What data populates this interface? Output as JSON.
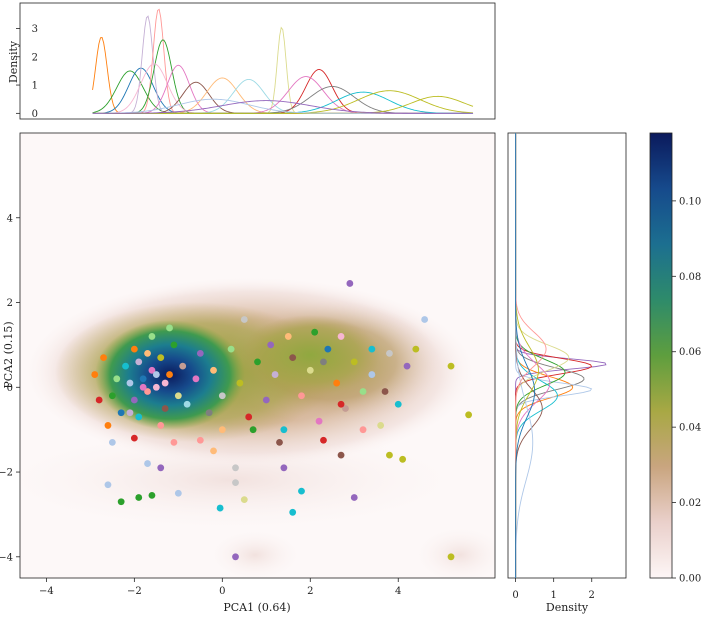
{
  "chart_data": {
    "type": "scatter",
    "subtype": "joint-plot-kde",
    "main": {
      "xlabel": "PCA1 (0.64)",
      "ylabel": "PCA2 (0.15)",
      "xlim": [
        -4.6,
        6.2
      ],
      "ylim": [
        -4.5,
        6.0
      ],
      "xticks": [
        -4,
        -2,
        0,
        2,
        4
      ],
      "yticks": [
        -4,
        -2,
        0,
        2,
        4
      ],
      "kde_colormap": "gist_earth_r",
      "points": [
        {
          "x": -2.9,
          "y": 0.3,
          "c": "#ff7f0e"
        },
        {
          "x": -2.8,
          "y": -0.3,
          "c": "#d62728"
        },
        {
          "x": -2.7,
          "y": 0.7,
          "c": "#ff7f0e"
        },
        {
          "x": -2.6,
          "y": -0.9,
          "c": "#ff7f0e"
        },
        {
          "x": -2.5,
          "y": -0.2,
          "c": "#2ca02c"
        },
        {
          "x": -2.4,
          "y": 0.2,
          "c": "#98df8a"
        },
        {
          "x": -2.3,
          "y": -0.6,
          "c": "#1f77b4"
        },
        {
          "x": -2.2,
          "y": 0.5,
          "c": "#17becf"
        },
        {
          "x": -2.1,
          "y": 0.1,
          "c": "#aec7e8"
        },
        {
          "x": -2.0,
          "y": -0.3,
          "c": "#9467bd"
        },
        {
          "x": -1.9,
          "y": 0.6,
          "c": "#c5b0d5"
        },
        {
          "x": -1.8,
          "y": 0.2,
          "c": "#1f77b4"
        },
        {
          "x": -1.7,
          "y": -0.1,
          "c": "#ff9896"
        },
        {
          "x": -1.6,
          "y": 0.4,
          "c": "#e377c2"
        },
        {
          "x": -1.5,
          "y": 0.0,
          "c": "#f7b6d2"
        },
        {
          "x": -1.4,
          "y": 0.7,
          "c": "#bcbd22"
        },
        {
          "x": -1.3,
          "y": -0.5,
          "c": "#8c564b"
        },
        {
          "x": -1.2,
          "y": 0.3,
          "c": "#ff7f0e"
        },
        {
          "x": -1.1,
          "y": 1.0,
          "c": "#2ca02c"
        },
        {
          "x": -1.0,
          "y": -0.2,
          "c": "#dbdb8d"
        },
        {
          "x": -1.9,
          "y": -0.7,
          "c": "#17becf"
        },
        {
          "x": -1.6,
          "y": 1.2,
          "c": "#98df8a"
        },
        {
          "x": -2.0,
          "y": 0.9,
          "c": "#ff7f0e"
        },
        {
          "x": -1.4,
          "y": -0.9,
          "c": "#ff9896"
        },
        {
          "x": -0.9,
          "y": 0.5,
          "c": "#c49c94"
        },
        {
          "x": -0.8,
          "y": -0.4,
          "c": "#9edae5"
        },
        {
          "x": -0.6,
          "y": 0.2,
          "c": "#e377c2"
        },
        {
          "x": -0.5,
          "y": 0.8,
          "c": "#9467bd"
        },
        {
          "x": -0.3,
          "y": -0.6,
          "c": "#7f7f7f"
        },
        {
          "x": -0.2,
          "y": 0.4,
          "c": "#ffbb78"
        },
        {
          "x": 0.0,
          "y": -0.2,
          "c": "#c7c7c7"
        },
        {
          "x": 0.2,
          "y": 0.9,
          "c": "#98df8a"
        },
        {
          "x": 0.4,
          "y": 0.1,
          "c": "#bcbd22"
        },
        {
          "x": 0.6,
          "y": -0.7,
          "c": "#d62728"
        },
        {
          "x": 0.8,
          "y": 0.6,
          "c": "#2ca02c"
        },
        {
          "x": 1.0,
          "y": -0.3,
          "c": "#9467bd"
        },
        {
          "x": 1.2,
          "y": 0.3,
          "c": "#c5b0d5"
        },
        {
          "x": 1.4,
          "y": -1.0,
          "c": "#17becf"
        },
        {
          "x": 1.6,
          "y": 0.7,
          "c": "#8c564b"
        },
        {
          "x": 1.8,
          "y": -0.2,
          "c": "#ff9896"
        },
        {
          "x": 2.0,
          "y": 0.4,
          "c": "#dbdb8d"
        },
        {
          "x": 2.2,
          "y": -0.8,
          "c": "#e377c2"
        },
        {
          "x": 2.4,
          "y": 0.9,
          "c": "#1f77b4"
        },
        {
          "x": 2.6,
          "y": 0.1,
          "c": "#ff7f0e"
        },
        {
          "x": 2.8,
          "y": -0.5,
          "c": "#c49c94"
        },
        {
          "x": 3.0,
          "y": 0.6,
          "c": "#bcbd22"
        },
        {
          "x": 3.2,
          "y": -0.1,
          "c": "#98df8a"
        },
        {
          "x": 3.4,
          "y": 0.3,
          "c": "#aec7e8"
        },
        {
          "x": 3.6,
          "y": -0.9,
          "c": "#dbdb8d"
        },
        {
          "x": 3.8,
          "y": 0.8,
          "c": "#c7c7c7"
        },
        {
          "x": 4.0,
          "y": -0.4,
          "c": "#17becf"
        },
        {
          "x": 4.2,
          "y": 0.5,
          "c": "#9467bd"
        },
        {
          "x": 4.4,
          "y": 0.9,
          "c": "#bcbd22"
        },
        {
          "x": 4.6,
          "y": 1.6,
          "c": "#aec7e8"
        },
        {
          "x": 5.2,
          "y": 0.5,
          "c": "#bcbd22"
        },
        {
          "x": 5.6,
          "y": -0.65,
          "c": "#bcbd22"
        },
        {
          "x": 2.9,
          "y": 2.45,
          "c": "#9467bd"
        },
        {
          "x": 3.0,
          "y": -2.6,
          "c": "#9467bd"
        },
        {
          "x": 0.3,
          "y": -4.0,
          "c": "#9467bd"
        },
        {
          "x": 5.2,
          "y": -4.0,
          "c": "#bcbd22"
        },
        {
          "x": -2.3,
          "y": -2.7,
          "c": "#2ca02c"
        },
        {
          "x": -1.9,
          "y": -2.6,
          "c": "#2ca02c"
        },
        {
          "x": -1.6,
          "y": -2.55,
          "c": "#2ca02c"
        },
        {
          "x": -1.0,
          "y": -2.5,
          "c": "#aec7e8"
        },
        {
          "x": -0.05,
          "y": -2.85,
          "c": "#17becf"
        },
        {
          "x": 0.5,
          "y": -2.65,
          "c": "#dbdb8d"
        },
        {
          "x": -2.6,
          "y": -2.3,
          "c": "#aec7e8"
        },
        {
          "x": 1.6,
          "y": -2.95,
          "c": "#17becf"
        },
        {
          "x": 1.8,
          "y": -2.45,
          "c": "#17becf"
        },
        {
          "x": 0.3,
          "y": -2.25,
          "c": "#c7c7c7"
        },
        {
          "x": -2.5,
          "y": -1.3,
          "c": "#aec7e8"
        },
        {
          "x": -1.7,
          "y": -1.8,
          "c": "#aec7e8"
        },
        {
          "x": -1.4,
          "y": -1.9,
          "c": "#9467bd"
        },
        {
          "x": -0.2,
          "y": -1.5,
          "c": "#ffbb78"
        },
        {
          "x": 0.3,
          "y": -1.9,
          "c": "#c7c7c7"
        },
        {
          "x": 1.4,
          "y": -1.9,
          "c": "#9467bd"
        },
        {
          "x": 3.8,
          "y": -1.6,
          "c": "#bcbd22"
        },
        {
          "x": 4.1,
          "y": -1.7,
          "c": "#bcbd22"
        },
        {
          "x": 2.7,
          "y": -1.6,
          "c": "#8c564b"
        },
        {
          "x": 1.3,
          "y": -1.3,
          "c": "#8c564b"
        },
        {
          "x": 0.7,
          "y": -1.0,
          "c": "#2ca02c"
        },
        {
          "x": 3.2,
          "y": -1.0,
          "c": "#ff9896"
        },
        {
          "x": 2.1,
          "y": 1.3,
          "c": "#2ca02c"
        },
        {
          "x": 2.7,
          "y": 1.2,
          "c": "#f7b6d2"
        },
        {
          "x": 3.4,
          "y": 0.9,
          "c": "#17becf"
        },
        {
          "x": 1.5,
          "y": 1.2,
          "c": "#ffbb78"
        },
        {
          "x": 0.5,
          "y": 1.6,
          "c": "#c7c7c7"
        },
        {
          "x": -1.2,
          "y": 1.4,
          "c": "#98df8a"
        },
        {
          "x": -2.0,
          "y": -1.2,
          "c": "#d62728"
        },
        {
          "x": -1.1,
          "y": -1.3,
          "c": "#ff9896"
        },
        {
          "x": -0.5,
          "y": -1.25,
          "c": "#ff9896"
        },
        {
          "x": 0.0,
          "y": -1.0,
          "c": "#ffbb78"
        },
        {
          "x": 2.3,
          "y": -1.25,
          "c": "#d62728"
        },
        {
          "x": 2.7,
          "y": -0.4,
          "c": "#d62728"
        },
        {
          "x": 3.7,
          "y": -0.1,
          "c": "#8c564b"
        },
        {
          "x": 1.1,
          "y": 1.0,
          "c": "#9467bd"
        },
        {
          "x": 2.3,
          "y": 0.6,
          "c": "#7f7f7f"
        },
        {
          "x": -1.5,
          "y": 0.3,
          "c": "#aec7e8"
        },
        {
          "x": -1.8,
          "y": 0.0,
          "c": "#e377c2"
        },
        {
          "x": -1.3,
          "y": 0.1,
          "c": "#f7b6d2"
        },
        {
          "x": -2.1,
          "y": -0.6,
          "c": "#c5b0d5"
        },
        {
          "x": -1.7,
          "y": 0.8,
          "c": "#ffbb78"
        }
      ]
    },
    "top_marginal": {
      "ylabel": "Density",
      "yticks": [
        0,
        1,
        2,
        3
      ],
      "ylim": [
        -0.2,
        3.9
      ],
      "curves": [
        {
          "mu": -2.75,
          "sigma": 0.13,
          "amp": 2.7,
          "color": "#ff7f0e"
        },
        {
          "mu": -2.1,
          "sigma": 0.3,
          "amp": 1.5,
          "color": "#2ca02c"
        },
        {
          "mu": -1.85,
          "sigma": 0.28,
          "amp": 1.6,
          "color": "#1f77b4"
        },
        {
          "mu": -1.7,
          "sigma": 0.12,
          "amp": 3.45,
          "color": "#c5b0d5"
        },
        {
          "mu": -1.45,
          "sigma": 0.12,
          "amp": 3.7,
          "color": "#ff9896"
        },
        {
          "mu": -1.35,
          "sigma": 0.2,
          "amp": 2.6,
          "color": "#2ca02c"
        },
        {
          "mu": -1.55,
          "sigma": 0.3,
          "amp": 1.75,
          "color": "#f7b6d2"
        },
        {
          "mu": -1.0,
          "sigma": 0.25,
          "amp": 1.7,
          "color": "#e377c2"
        },
        {
          "mu": -0.6,
          "sigma": 0.3,
          "amp": 1.1,
          "color": "#8c564b"
        },
        {
          "mu": 0.0,
          "sigma": 0.35,
          "amp": 1.25,
          "color": "#ffbb78"
        },
        {
          "mu": 0.6,
          "sigma": 0.35,
          "amp": 1.2,
          "color": "#9edae5"
        },
        {
          "mu": 1.35,
          "sigma": 0.1,
          "amp": 3.05,
          "color": "#dbdb8d"
        },
        {
          "mu": 2.2,
          "sigma": 0.3,
          "amp": 1.55,
          "color": "#d62728"
        },
        {
          "mu": 1.9,
          "sigma": 0.4,
          "amp": 1.3,
          "color": "#e377c2"
        },
        {
          "mu": 2.5,
          "sigma": 0.5,
          "amp": 0.95,
          "color": "#7f7f7f"
        },
        {
          "mu": 3.2,
          "sigma": 0.6,
          "amp": 0.75,
          "color": "#17becf"
        },
        {
          "mu": 3.8,
          "sigma": 0.7,
          "amp": 0.8,
          "color": "#bcbd22"
        },
        {
          "mu": 4.9,
          "sigma": 0.6,
          "amp": 0.6,
          "color": "#bcbd22"
        },
        {
          "mu": -0.2,
          "sigma": 0.8,
          "amp": 0.5,
          "color": "#aec7e8"
        },
        {
          "mu": 1.0,
          "sigma": 1.0,
          "amp": 0.45,
          "color": "#9467bd"
        }
      ]
    },
    "right_marginal": {
      "xlabel": "Density",
      "xticks": [
        0,
        1,
        2
      ],
      "xlim": [
        -0.2,
        2.9
      ],
      "curves": [
        {
          "mu": 0.55,
          "sigma": 0.12,
          "amp": 2.4,
          "color": "#9467bd"
        },
        {
          "mu": 0.5,
          "sigma": 0.18,
          "amp": 2.0,
          "color": "#d62728"
        },
        {
          "mu": 0.2,
          "sigma": 0.25,
          "amp": 1.8,
          "color": "#7f7f7f"
        },
        {
          "mu": 0.0,
          "sigma": 0.25,
          "amp": 1.5,
          "color": "#ff7f0e"
        },
        {
          "mu": -0.05,
          "sigma": 0.15,
          "amp": 2.0,
          "color": "#aec7e8"
        },
        {
          "mu": 0.35,
          "sigma": 0.3,
          "amp": 1.3,
          "color": "#2ca02c"
        },
        {
          "mu": -0.2,
          "sigma": 0.35,
          "amp": 1.1,
          "color": "#17becf"
        },
        {
          "mu": 0.7,
          "sigma": 0.3,
          "amp": 1.4,
          "color": "#dbdb8d"
        },
        {
          "mu": 0.1,
          "sigma": 0.45,
          "amp": 0.9,
          "color": "#e377c2"
        },
        {
          "mu": -0.5,
          "sigma": 0.45,
          "amp": 0.7,
          "color": "#8c564b"
        },
        {
          "mu": 0.4,
          "sigma": 0.55,
          "amp": 0.6,
          "color": "#bcbd22"
        },
        {
          "mu": -1.3,
          "sigma": 0.9,
          "amp": 0.45,
          "color": "#aec7e8"
        },
        {
          "mu": 0.9,
          "sigma": 0.4,
          "amp": 0.8,
          "color": "#ff9896"
        },
        {
          "mu": -0.1,
          "sigma": 0.6,
          "amp": 0.5,
          "color": "#1f77b4"
        }
      ]
    },
    "colorbar": {
      "ticks": [
        "0.00",
        "0.02",
        "0.04",
        "0.06",
        "0.08",
        "0.10"
      ],
      "tick_values": [
        0.0,
        0.02,
        0.04,
        0.06,
        0.08,
        0.1
      ],
      "range": [
        0.0,
        0.118
      ],
      "colors": [
        "#fdf6f6",
        "#ead0cb",
        "#c9a57f",
        "#a8a844",
        "#5e9e3e",
        "#2e8b6a",
        "#1c6f90",
        "#164a8c",
        "#0b1a5c"
      ]
    }
  }
}
